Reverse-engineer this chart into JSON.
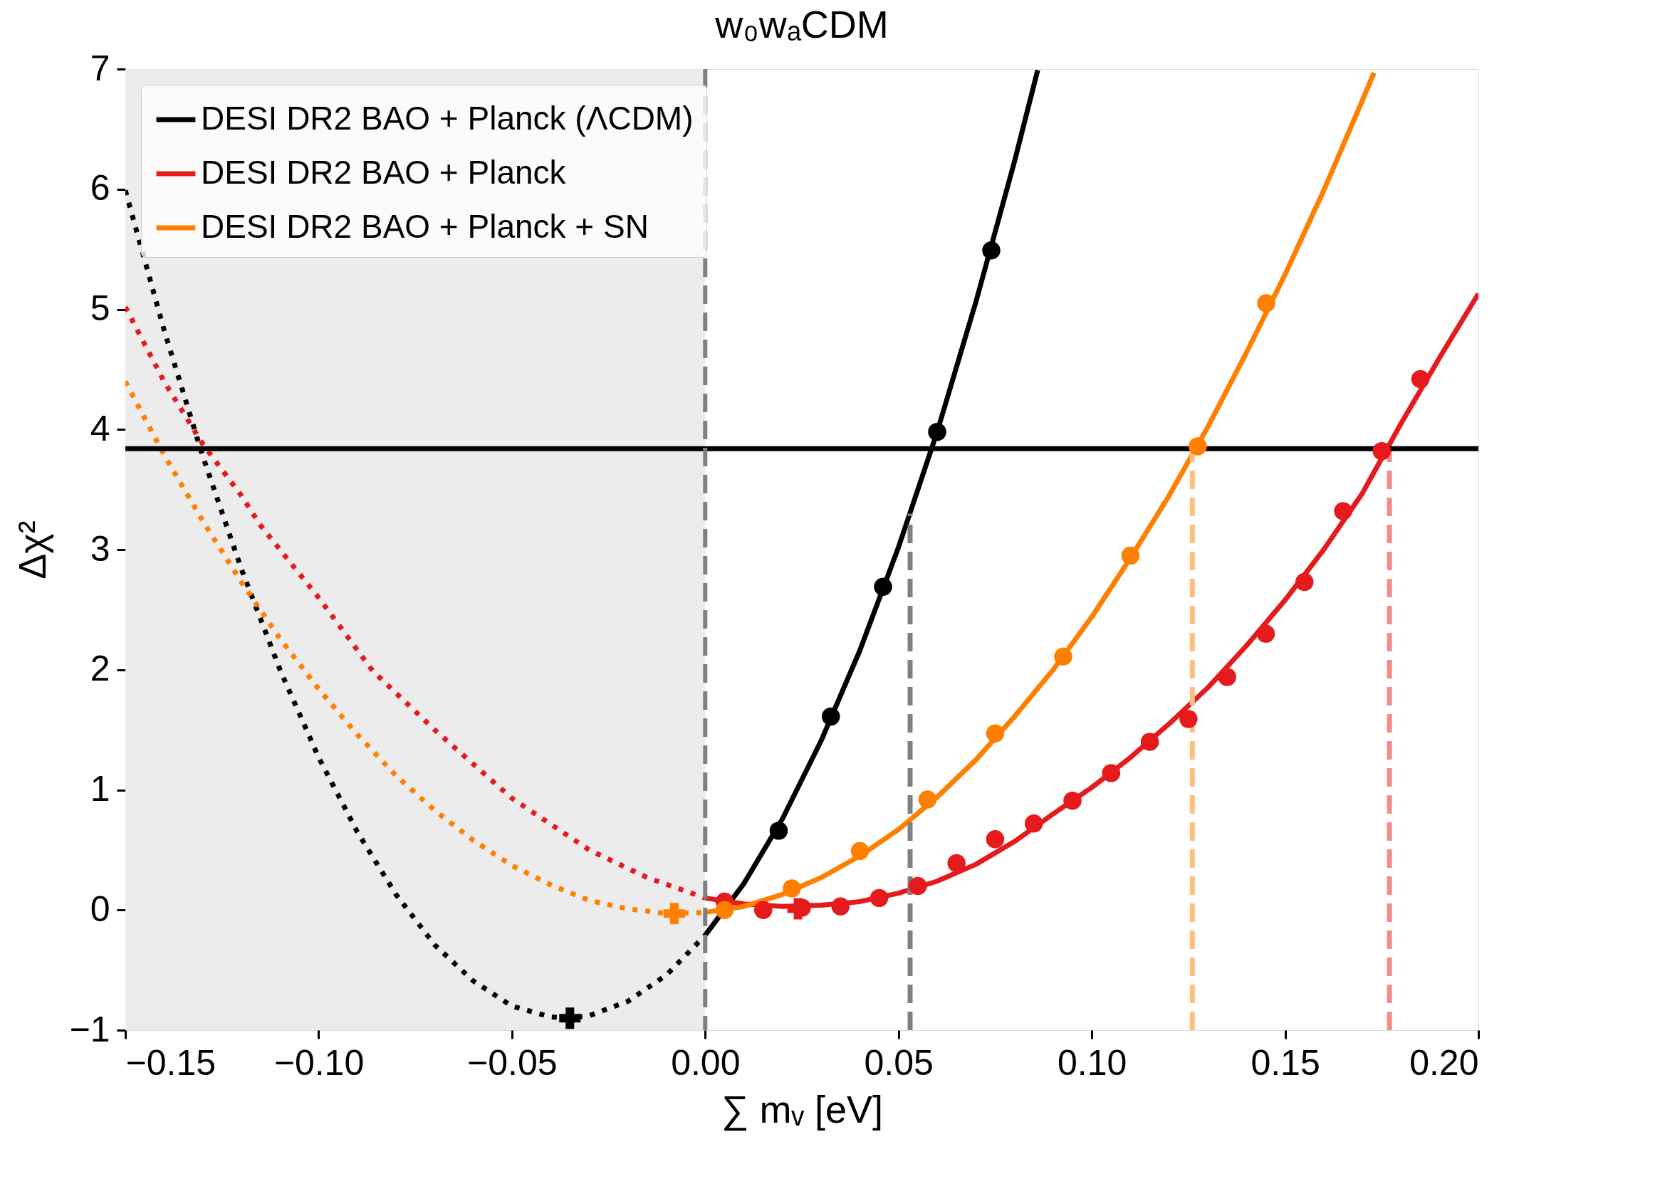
{
  "chart_data": {
    "type": "line",
    "title": "w₀wₐCDM",
    "xlabel": "∑ mᵥ [eV]",
    "ylabel": "Δχ²",
    "xlim": [
      -0.15,
      0.2
    ],
    "ylim": [
      -1,
      7
    ],
    "xticks": [
      {
        "value": -0.15,
        "label": "−0.15"
      },
      {
        "value": -0.1,
        "label": "−0.10"
      },
      {
        "value": -0.05,
        "label": "−0.05"
      },
      {
        "value": 0,
        "label": "0.00"
      },
      {
        "value": 0.05,
        "label": "0.05"
      },
      {
        "value": 0.1,
        "label": "0.10"
      },
      {
        "value": 0.15,
        "label": "0.15"
      },
      {
        "value": 0.2,
        "label": "0.20"
      }
    ],
    "yticks": [
      {
        "value": -1,
        "label": "−1"
      },
      0,
      1,
      2,
      3,
      4,
      5,
      6,
      7
    ],
    "grid": false,
    "legend": "top left",
    "bands": [
      {
        "axis": "x",
        "from": -0.15,
        "to": 0,
        "color": "#ececec"
      }
    ],
    "ref_lines": [
      {
        "axis": "y",
        "value": 3.84,
        "color": "#000000",
        "line_style": "solid"
      },
      {
        "axis": "x",
        "value": 0,
        "color": "#808080",
        "line_style": "dashed"
      }
    ],
    "series": [
      {
        "name": "DESI DR2 BAO + Planck (ΛCDM)",
        "type": "line",
        "line_style": "solid",
        "color": "#000000",
        "x": [
          0,
          0.01,
          0.02,
          0.03,
          0.04,
          0.05,
          0.06,
          0.07,
          0.08,
          0.086
        ],
        "values": [
          -0.21,
          0.22,
          0.76,
          1.41,
          2.16,
          3.02,
          3.98,
          5.06,
          6.23,
          6.99
        ]
      },
      {
        "name": "DESI DR2 BAO + Planck",
        "type": "line",
        "line_style": "solid",
        "color": "#e41a1c",
        "x": [
          0,
          0.01,
          0.02,
          0.03,
          0.04,
          0.05,
          0.06,
          0.07,
          0.08,
          0.09,
          0.1,
          0.11,
          0.12,
          0.13,
          0.14,
          0.15,
          0.16,
          0.17,
          0.18,
          0.19,
          0.2
        ],
        "values": [
          0.1,
          0.05,
          0.03,
          0.04,
          0.07,
          0.14,
          0.24,
          0.38,
          0.57,
          0.8,
          1.02,
          1.27,
          1.55,
          1.85,
          2.2,
          2.58,
          3.0,
          3.47,
          4.05,
          4.6,
          5.13
        ]
      },
      {
        "name": "DESI DR2 BAO + Planck + SN",
        "type": "line",
        "line_style": "solid",
        "color": "#ff7f00",
        "x": [
          0,
          0.01,
          0.02,
          0.03,
          0.04,
          0.05,
          0.06,
          0.07,
          0.08,
          0.09,
          0.1,
          0.11,
          0.12,
          0.13,
          0.14,
          0.15,
          0.16,
          0.17,
          0.173
        ],
        "values": [
          -0.02,
          0.03,
          0.13,
          0.27,
          0.45,
          0.67,
          0.94,
          1.25,
          1.61,
          2.0,
          2.44,
          2.93,
          3.45,
          4.02,
          4.64,
          5.29,
          5.99,
          6.74,
          6.97
        ]
      },
      {
        "type": "line",
        "line_style": "dotted",
        "color": "#000000",
        "x": [
          -0.15,
          -0.14,
          -0.13,
          -0.12,
          -0.11,
          -0.1,
          -0.09,
          -0.08,
          -0.07,
          -0.06,
          -0.05,
          -0.04,
          -0.036,
          -0.03,
          -0.02,
          -0.01,
          0
        ],
        "values": [
          5.99,
          4.83,
          3.78,
          2.84,
          2.0,
          1.27,
          0.65,
          0.13,
          -0.29,
          -0.59,
          -0.8,
          -0.89,
          -0.9,
          -0.88,
          -0.76,
          -0.54,
          -0.21
        ]
      },
      {
        "type": "line",
        "line_style": "dotted",
        "color": "#e41a1c",
        "x": [
          -0.15,
          -0.14,
          -0.13,
          -0.12,
          -0.115,
          -0.1,
          -0.086,
          -0.07,
          -0.05,
          -0.03,
          -0.015,
          0
        ],
        "values": [
          5.02,
          4.4,
          3.88,
          3.45,
          3.2,
          2.6,
          1.99,
          1.5,
          0.93,
          0.5,
          0.27,
          0.1
        ]
      },
      {
        "type": "line",
        "line_style": "dotted",
        "color": "#ff7f00",
        "x": [
          -0.15,
          -0.14,
          -0.13,
          -0.12,
          -0.11,
          -0.1,
          -0.09,
          -0.08,
          -0.07,
          -0.06,
          -0.05,
          -0.04,
          -0.03,
          -0.02,
          -0.01,
          0
        ],
        "values": [
          4.4,
          3.79,
          3.24,
          2.73,
          2.26,
          1.84,
          1.46,
          1.12,
          0.83,
          0.58,
          0.37,
          0.21,
          0.08,
          0.01,
          -0.03,
          -0.02
        ]
      },
      {
        "type": "line",
        "line_style": "dashed",
        "color": "#808080",
        "x": [
          0.053,
          0.053
        ],
        "values": [
          -1,
          3.3
        ]
      },
      {
        "type": "line",
        "line_style": "dashed",
        "color": "#ffbf7f",
        "x": [
          0.126,
          0.126
        ],
        "values": [
          -1,
          3.84
        ]
      },
      {
        "type": "line",
        "line_style": "dashed",
        "color": "#f08c8c",
        "x": [
          0.177,
          0.177
        ],
        "values": [
          -1,
          3.84
        ]
      },
      {
        "type": "scatter",
        "marker": "circle",
        "color": "#000000",
        "x": [
          0.019,
          0.0325,
          0.046,
          0.06,
          0.074
        ],
        "values": [
          0.66,
          1.61,
          2.69,
          3.98,
          5.49
        ]
      },
      {
        "type": "scatter",
        "marker": "circle",
        "color": "#e41a1c",
        "x": [
          0.005,
          0.015,
          0.025,
          0.035,
          0.045,
          0.055,
          0.065,
          0.075,
          0.085,
          0.095,
          0.105,
          0.115,
          0.125,
          0.135,
          0.145,
          0.155,
          0.165,
          0.175,
          0.185
        ],
        "values": [
          0.07,
          0.0,
          0.02,
          0.03,
          0.1,
          0.2,
          0.39,
          0.59,
          0.72,
          0.91,
          1.14,
          1.4,
          1.59,
          1.94,
          2.3,
          2.73,
          3.32,
          3.82,
          4.42
        ]
      },
      {
        "type": "scatter",
        "marker": "circle",
        "color": "#ff7f00",
        "x": [
          0.005,
          0.0224,
          0.04,
          0.0575,
          0.075,
          0.0926,
          0.11,
          0.1274,
          0.1451
        ],
        "values": [
          0.0,
          0.18,
          0.49,
          0.92,
          1.47,
          2.11,
          2.95,
          3.86,
          5.05
        ]
      },
      {
        "type": "scatter",
        "marker": "cross",
        "color": "#000000",
        "x": [
          -0.035
        ],
        "values": [
          -0.9
        ]
      },
      {
        "type": "scatter",
        "marker": "cross",
        "color": "#e41a1c",
        "x": [
          0.024
        ],
        "values": [
          0.01
        ]
      },
      {
        "type": "scatter",
        "marker": "cross",
        "color": "#ff7f00",
        "x": [
          -0.008
        ],
        "values": [
          -0.03
        ]
      }
    ]
  }
}
